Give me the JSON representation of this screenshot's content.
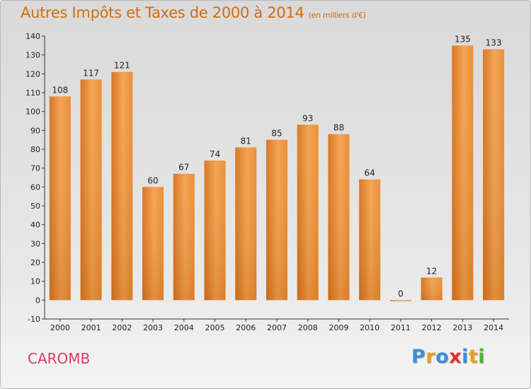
{
  "chart_data": {
    "type": "bar",
    "title": "Autres Impôts et Taxes de 2000 à 2014",
    "unit": "(en milliers d'€)",
    "categories": [
      "2000",
      "2001",
      "2002",
      "2003",
      "2004",
      "2005",
      "2006",
      "2007",
      "2008",
      "2009",
      "2010",
      "2011",
      "2012",
      "2013",
      "2014"
    ],
    "values": [
      108,
      117,
      121,
      60,
      67,
      74,
      81,
      85,
      93,
      88,
      64,
      0,
      12,
      135,
      133
    ],
    "ylim": [
      -10,
      140
    ],
    "yticks": [
      -10,
      0,
      10,
      20,
      30,
      40,
      50,
      60,
      70,
      80,
      90,
      100,
      110,
      120,
      130,
      140
    ],
    "grid": false,
    "bar_color": "#f08c28"
  },
  "place": "CAROMB",
  "brand": {
    "letters": [
      "P",
      "r",
      "o",
      "x",
      "i",
      "t",
      "i"
    ],
    "colors": [
      "#3a8fd8",
      "#e8a020",
      "#3a8fd8",
      "#e03030",
      "#3a8fd8",
      "#e8a020",
      "#50b030"
    ]
  }
}
